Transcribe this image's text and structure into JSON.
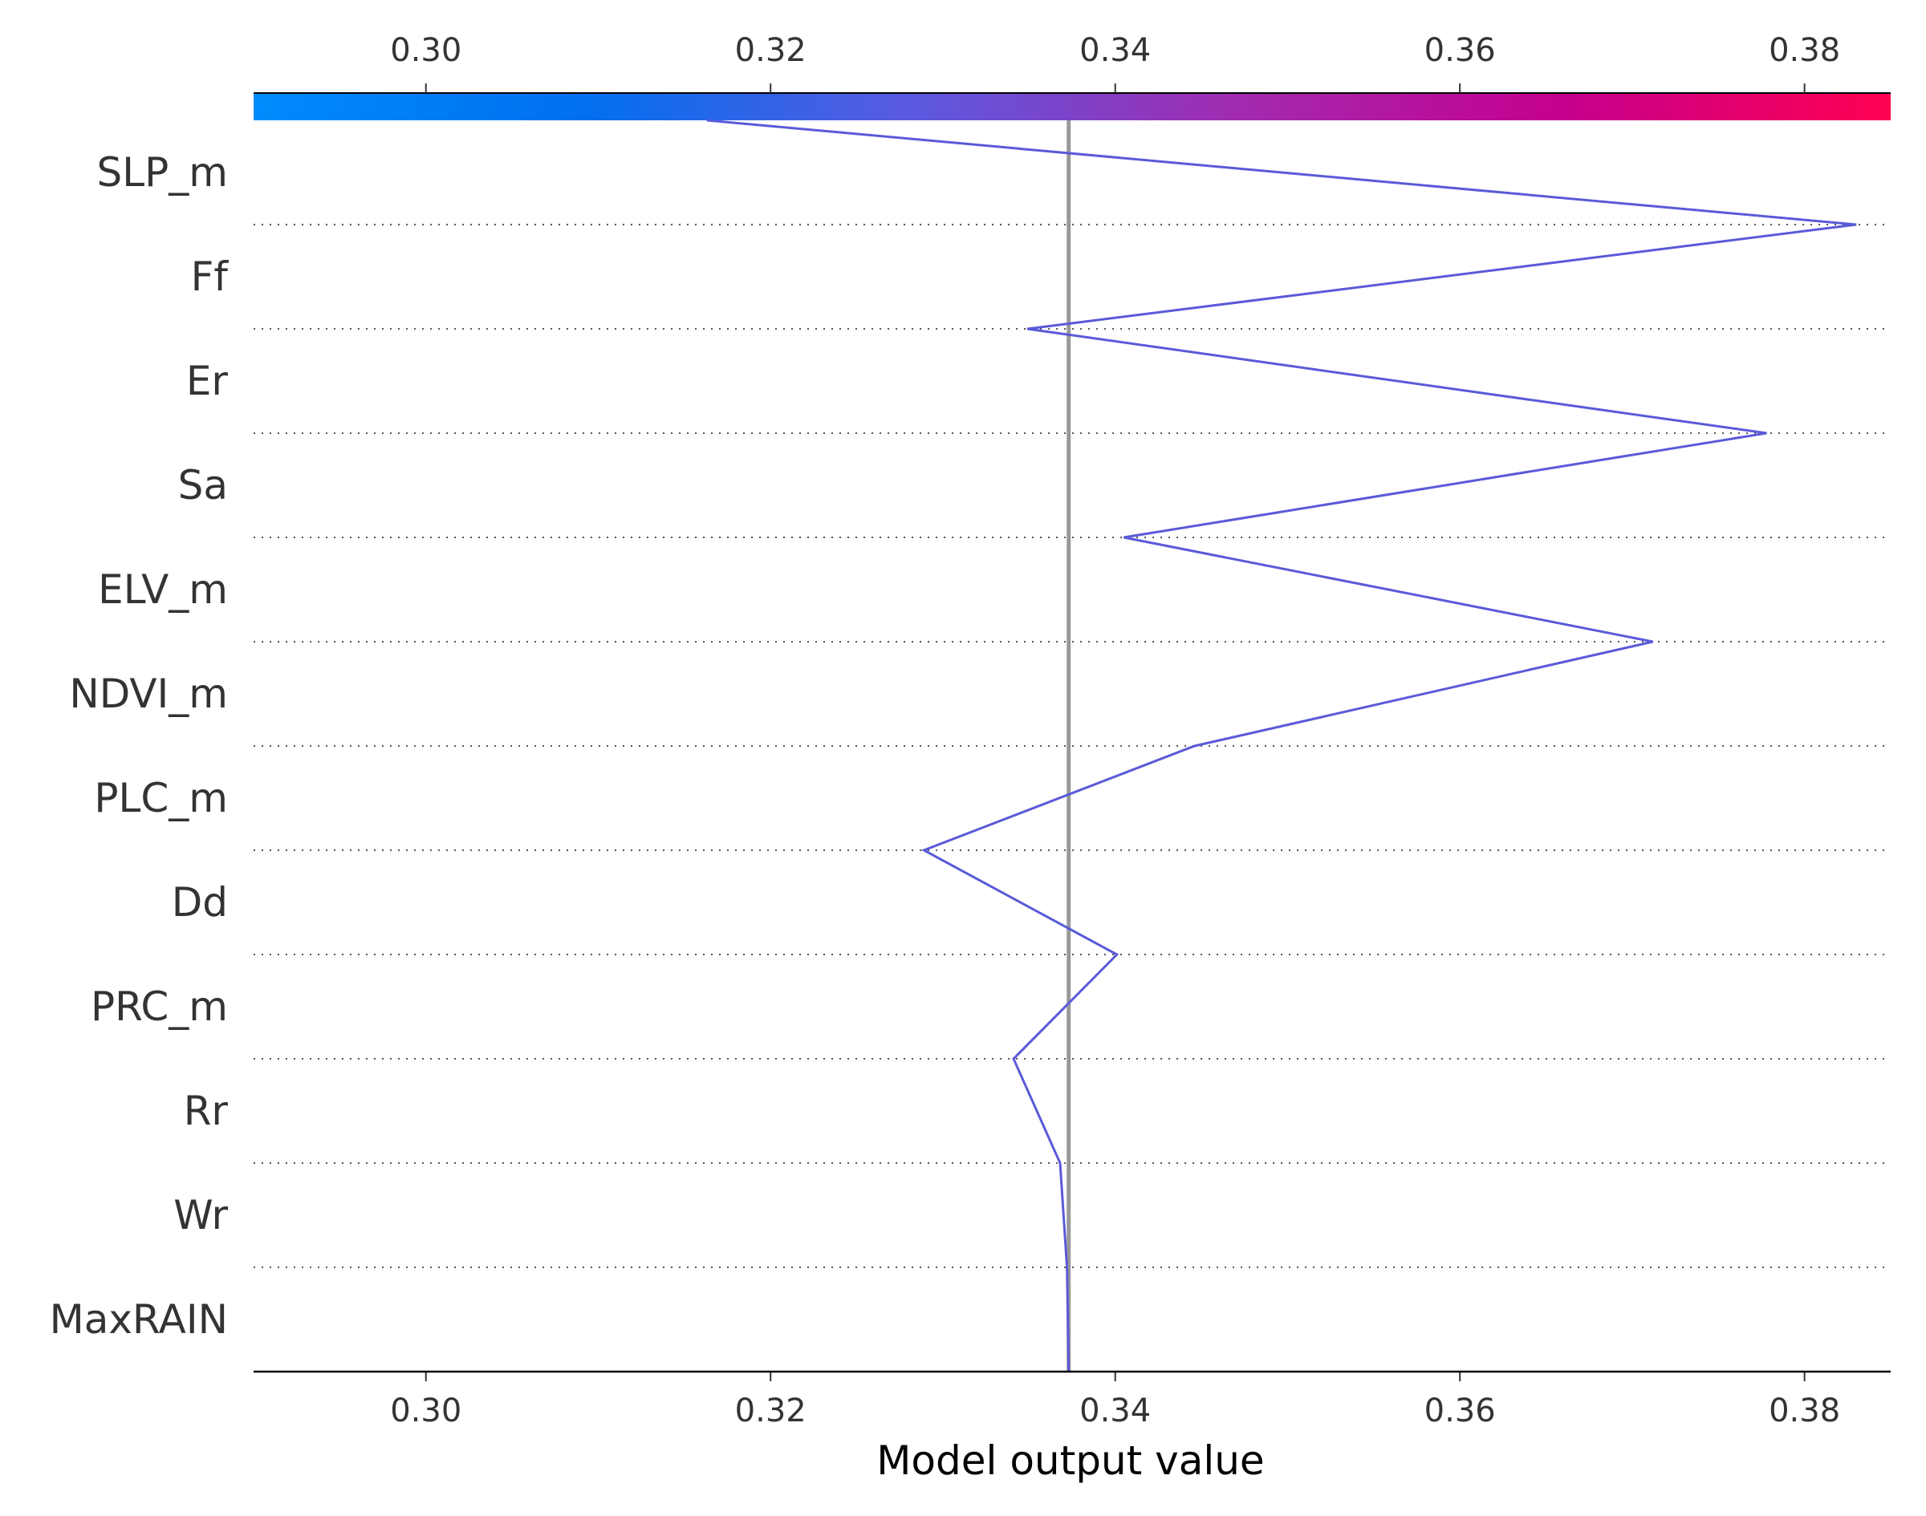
{
  "chart_data": {
    "type": "line",
    "title": "",
    "xlabel": "Model output value",
    "ylabel": "",
    "xlim": [
      0.29,
      0.385
    ],
    "xticks": [
      0.3,
      0.32,
      0.34,
      0.36,
      0.38
    ],
    "xtick_labels": [
      "0.30",
      "0.32",
      "0.34",
      "0.36",
      "0.38"
    ],
    "base_value": 0.3373,
    "colormap": [
      "#008bfb",
      "#0070ef",
      "#5a5ae0",
      "#a12bb0",
      "#c5008e",
      "#ff0052"
    ],
    "base_line_color": "#999999",
    "path_color": "#5a5ad9",
    "grid": "dotted horizontal",
    "features": [
      "SLP_m",
      "Ff",
      "Er",
      "Sa",
      "ELV_m",
      "NDVI_m",
      "PLC_m",
      "Dd",
      "PRC_m",
      "Rr",
      "Wr",
      "MaxRAIN"
    ],
    "path_values": [
      0.3163,
      0.383,
      0.3349,
      0.3778,
      0.3405,
      0.3712,
      0.3446,
      0.3289,
      0.3401,
      0.3341,
      0.3368,
      0.3372,
      0.3373
    ]
  }
}
